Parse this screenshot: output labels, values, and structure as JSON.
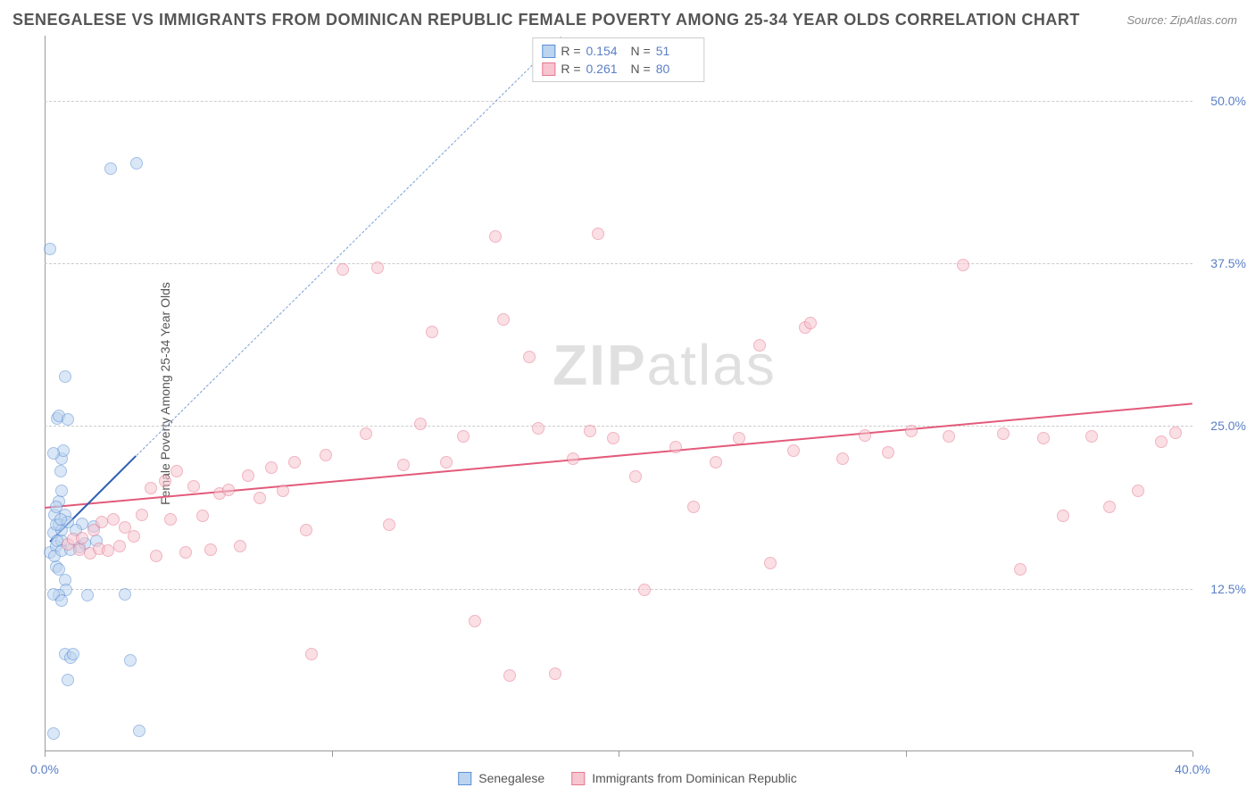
{
  "title": "SENEGALESE VS IMMIGRANTS FROM DOMINICAN REPUBLIC FEMALE POVERTY AMONG 25-34 YEAR OLDS CORRELATION CHART",
  "source": "Source: ZipAtlas.com",
  "y_axis_label": "Female Poverty Among 25-34 Year Olds",
  "watermark_a": "ZIP",
  "watermark_b": "atlas",
  "chart": {
    "type": "scatter",
    "xlim": [
      0,
      40
    ],
    "ylim": [
      0,
      55
    ],
    "x_ticks": [
      0,
      10,
      20,
      30,
      40
    ],
    "x_tick_labels": [
      "0.0%",
      "",
      "",
      "",
      "40.0%"
    ],
    "y_ticks": [
      12.5,
      25,
      37.5,
      50
    ],
    "y_tick_labels": [
      "12.5%",
      "25.0%",
      "37.5%",
      "50.0%"
    ],
    "grid_color": "#cccccc",
    "background_color": "#ffffff",
    "marker_radius": 7,
    "marker_opacity": 0.55
  },
  "series": [
    {
      "name": "Senegalese",
      "color_stroke": "#5b8fd6",
      "color_fill": "#bcd4ef",
      "R": "0.154",
      "N": "51",
      "trend": {
        "x1": 0.2,
        "y1": 16.2,
        "x2": 3.2,
        "y2": 22.8,
        "style": "solid",
        "width": 2.5,
        "color": "#2f5fb3"
      },
      "trend_ext": {
        "x1": 3.2,
        "y1": 22.8,
        "x2": 18.0,
        "y2": 55.0,
        "style": "dashed",
        "width": 1.2,
        "color": "#7a9fd8"
      },
      "points": [
        [
          0.2,
          15.3
        ],
        [
          0.3,
          16.8
        ],
        [
          0.35,
          18.2
        ],
        [
          0.4,
          14.2
        ],
        [
          0.4,
          15.8
        ],
        [
          0.5,
          17.4
        ],
        [
          0.5,
          19.2
        ],
        [
          0.6,
          20.0
        ],
        [
          0.55,
          21.5
        ],
        [
          0.6,
          22.5
        ],
        [
          0.65,
          23.1
        ],
        [
          0.3,
          22.9
        ],
        [
          0.45,
          25.6
        ],
        [
          0.5,
          25.8
        ],
        [
          0.8,
          25.5
        ],
        [
          0.6,
          16.2
        ],
        [
          0.7,
          13.2
        ],
        [
          0.75,
          12.4
        ],
        [
          0.5,
          12.0
        ],
        [
          0.3,
          12.1
        ],
        [
          0.6,
          11.6
        ],
        [
          0.7,
          7.5
        ],
        [
          0.9,
          7.2
        ],
        [
          1.0,
          7.5
        ],
        [
          3.0,
          7.0
        ],
        [
          0.8,
          5.5
        ],
        [
          1.5,
          12.0
        ],
        [
          2.8,
          12.1
        ],
        [
          0.3,
          1.4
        ],
        [
          3.3,
          1.6
        ],
        [
          0.7,
          28.8
        ],
        [
          0.2,
          38.6
        ],
        [
          2.3,
          44.8
        ],
        [
          3.2,
          45.2
        ],
        [
          0.6,
          17.0
        ],
        [
          0.7,
          18.2
        ],
        [
          0.4,
          18.8
        ],
        [
          0.45,
          16.2
        ],
        [
          0.4,
          17.4
        ],
        [
          0.8,
          17.6
        ],
        [
          1.2,
          15.7
        ],
        [
          1.3,
          17.5
        ],
        [
          1.4,
          16.0
        ],
        [
          1.7,
          17.3
        ],
        [
          1.8,
          16.2
        ],
        [
          1.1,
          17.0
        ],
        [
          0.35,
          15.0
        ],
        [
          0.5,
          14.0
        ],
        [
          0.6,
          15.4
        ],
        [
          0.55,
          17.8
        ],
        [
          0.9,
          15.5
        ]
      ]
    },
    {
      "name": "Immigrants from Dominican Republic",
      "color_stroke": "#e6788f",
      "color_fill": "#f6c5d0",
      "R": "0.261",
      "N": "80",
      "trend": {
        "x1": 0.0,
        "y1": 18.8,
        "x2": 40.0,
        "y2": 26.8,
        "style": "solid",
        "width": 2.5,
        "color": "#e35a7a"
      },
      "points": [
        [
          0.8,
          15.9
        ],
        [
          1.0,
          16.3
        ],
        [
          1.2,
          15.5
        ],
        [
          1.3,
          16.4
        ],
        [
          1.6,
          15.2
        ],
        [
          1.7,
          17.0
        ],
        [
          1.9,
          15.6
        ],
        [
          2.0,
          17.6
        ],
        [
          2.2,
          15.4
        ],
        [
          2.4,
          17.8
        ],
        [
          2.6,
          15.8
        ],
        [
          2.8,
          17.2
        ],
        [
          3.1,
          16.5
        ],
        [
          3.4,
          18.2
        ],
        [
          3.7,
          20.2
        ],
        [
          3.9,
          15.0
        ],
        [
          4.2,
          20.8
        ],
        [
          4.4,
          17.8
        ],
        [
          4.6,
          21.5
        ],
        [
          4.9,
          15.3
        ],
        [
          5.2,
          20.4
        ],
        [
          5.5,
          18.1
        ],
        [
          5.8,
          15.5
        ],
        [
          6.1,
          19.8
        ],
        [
          6.4,
          20.1
        ],
        [
          6.8,
          15.8
        ],
        [
          7.1,
          21.2
        ],
        [
          7.5,
          19.5
        ],
        [
          7.9,
          21.8
        ],
        [
          8.3,
          20.0
        ],
        [
          8.7,
          22.2
        ],
        [
          9.1,
          17.0
        ],
        [
          9.3,
          7.5
        ],
        [
          9.8,
          22.8
        ],
        [
          10.4,
          37.0
        ],
        [
          11.2,
          24.4
        ],
        [
          11.6,
          37.2
        ],
        [
          12.0,
          17.4
        ],
        [
          12.5,
          22.0
        ],
        [
          13.1,
          25.2
        ],
        [
          13.5,
          32.2
        ],
        [
          14.0,
          22.2
        ],
        [
          14.6,
          24.2
        ],
        [
          15.0,
          10.0
        ],
        [
          15.7,
          39.6
        ],
        [
          16.0,
          33.2
        ],
        [
          16.2,
          5.8
        ],
        [
          16.9,
          30.3
        ],
        [
          17.2,
          24.8
        ],
        [
          17.8,
          6.0
        ],
        [
          18.4,
          22.5
        ],
        [
          19.0,
          24.6
        ],
        [
          19.3,
          39.8
        ],
        [
          19.8,
          24.1
        ],
        [
          20.6,
          21.1
        ],
        [
          20.9,
          12.4
        ],
        [
          22.0,
          23.4
        ],
        [
          22.6,
          18.8
        ],
        [
          23.4,
          22.2
        ],
        [
          24.2,
          24.1
        ],
        [
          24.9,
          31.2
        ],
        [
          25.3,
          14.5
        ],
        [
          26.1,
          23.1
        ],
        [
          26.5,
          32.6
        ],
        [
          26.7,
          32.9
        ],
        [
          27.8,
          22.5
        ],
        [
          28.6,
          24.3
        ],
        [
          29.4,
          23.0
        ],
        [
          30.2,
          24.6
        ],
        [
          31.5,
          24.2
        ],
        [
          32.0,
          37.4
        ],
        [
          33.4,
          24.4
        ],
        [
          34.0,
          14.0
        ],
        [
          34.8,
          24.1
        ],
        [
          35.5,
          18.1
        ],
        [
          36.5,
          24.2
        ],
        [
          37.1,
          18.8
        ],
        [
          38.1,
          20.0
        ],
        [
          38.9,
          23.8
        ],
        [
          39.4,
          24.5
        ]
      ]
    }
  ],
  "stats_legend_labels": {
    "R": "R =",
    "N": "N ="
  },
  "bottom_legend": [
    "Senegalese",
    "Immigrants from Dominican Republic"
  ]
}
